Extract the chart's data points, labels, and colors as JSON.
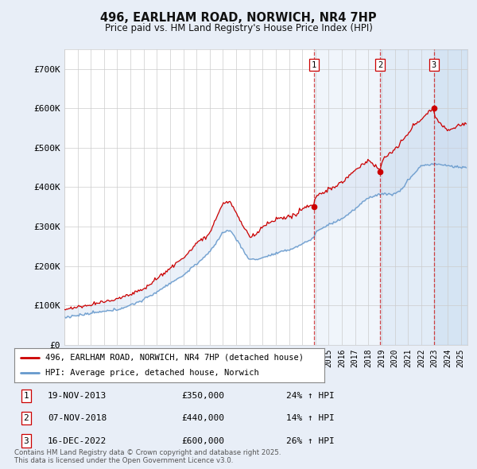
{
  "title": "496, EARLHAM ROAD, NORWICH, NR4 7HP",
  "subtitle": "Price paid vs. HM Land Registry's House Price Index (HPI)",
  "ylabel_ticks": [
    "£0",
    "£100K",
    "£200K",
    "£300K",
    "£400K",
    "£500K",
    "£600K",
    "£700K"
  ],
  "ytick_vals": [
    0,
    100000,
    200000,
    300000,
    400000,
    500000,
    600000,
    700000
  ],
  "ylim": [
    0,
    750000
  ],
  "xlim_start": 1995.0,
  "xlim_end": 2025.5,
  "bg_color": "#e8eef7",
  "plot_bg_color": "#ffffff",
  "grid_color": "#cccccc",
  "red_line_color": "#cc0000",
  "blue_line_color": "#6699cc",
  "fill_color": "#c8d8ee",
  "sale_points": [
    {
      "year": 2013.88,
      "price": 350000,
      "label": "1"
    },
    {
      "year": 2018.88,
      "price": 440000,
      "label": "2"
    },
    {
      "year": 2022.96,
      "price": 600000,
      "label": "3"
    }
  ],
  "vline_color": "#cc0000",
  "legend_entries": [
    "496, EARLHAM ROAD, NORWICH, NR4 7HP (detached house)",
    "HPI: Average price, detached house, Norwich"
  ],
  "table_rows": [
    {
      "num": "1",
      "date": "19-NOV-2013",
      "price": "£350,000",
      "change": "24% ↑ HPI"
    },
    {
      "num": "2",
      "date": "07-NOV-2018",
      "price": "£440,000",
      "change": "14% ↑ HPI"
    },
    {
      "num": "3",
      "date": "16-DEC-2022",
      "price": "£600,000",
      "change": "26% ↑ HPI"
    }
  ],
  "footnote": "Contains HM Land Registry data © Crown copyright and database right 2025.\nThis data is licensed under the Open Government Licence v3.0."
}
